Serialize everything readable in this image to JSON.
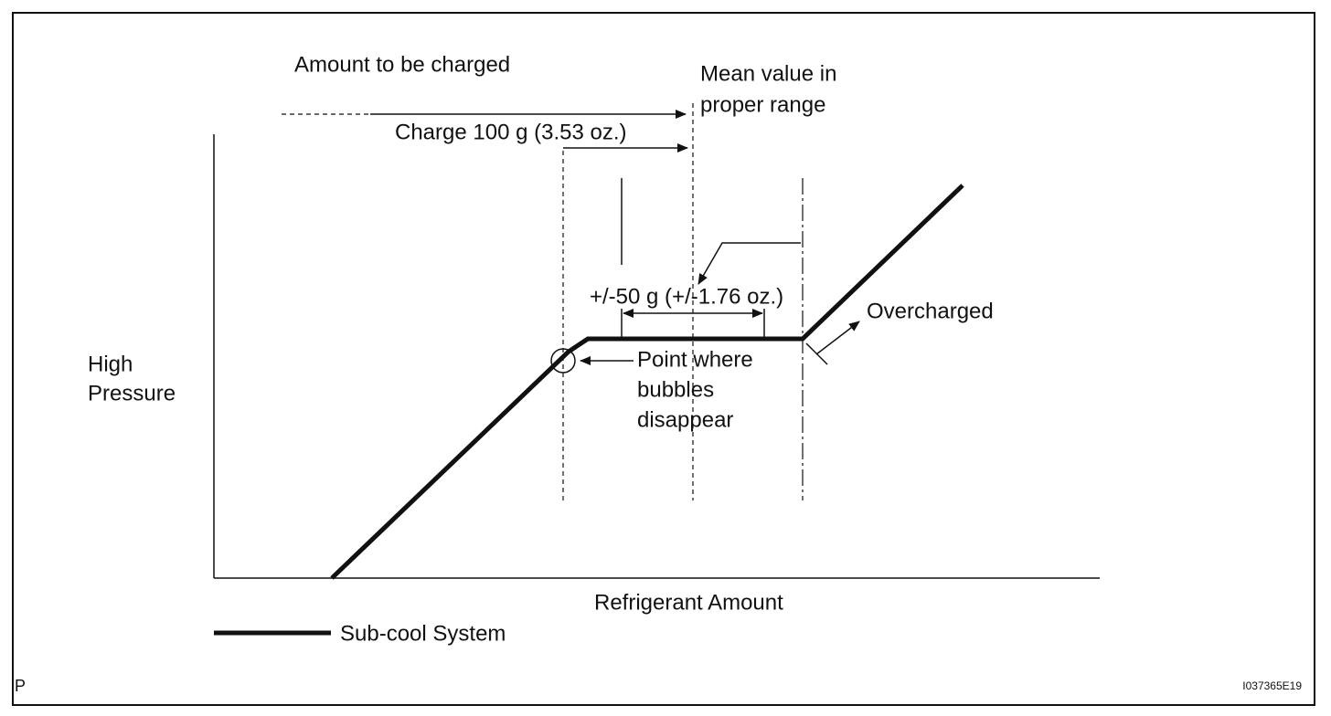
{
  "labels": {
    "amount_to_be_charged": "Amount to be charged",
    "mean_value": [
      "Mean value in",
      "proper range"
    ],
    "charge": "Charge 100 g (3.53 oz.)",
    "tolerance": "+/-50 g (+/-1.76 oz.)",
    "overcharged": "Overcharged",
    "y_axis": [
      "High",
      "Pressure"
    ],
    "bubbles_point": [
      "Point where",
      "bubbles",
      "disappear"
    ],
    "x_axis": "Refrigerant Amount",
    "legend": "Sub-cool System",
    "corner_left": "P",
    "figure_id": "I037365E19"
  }
}
